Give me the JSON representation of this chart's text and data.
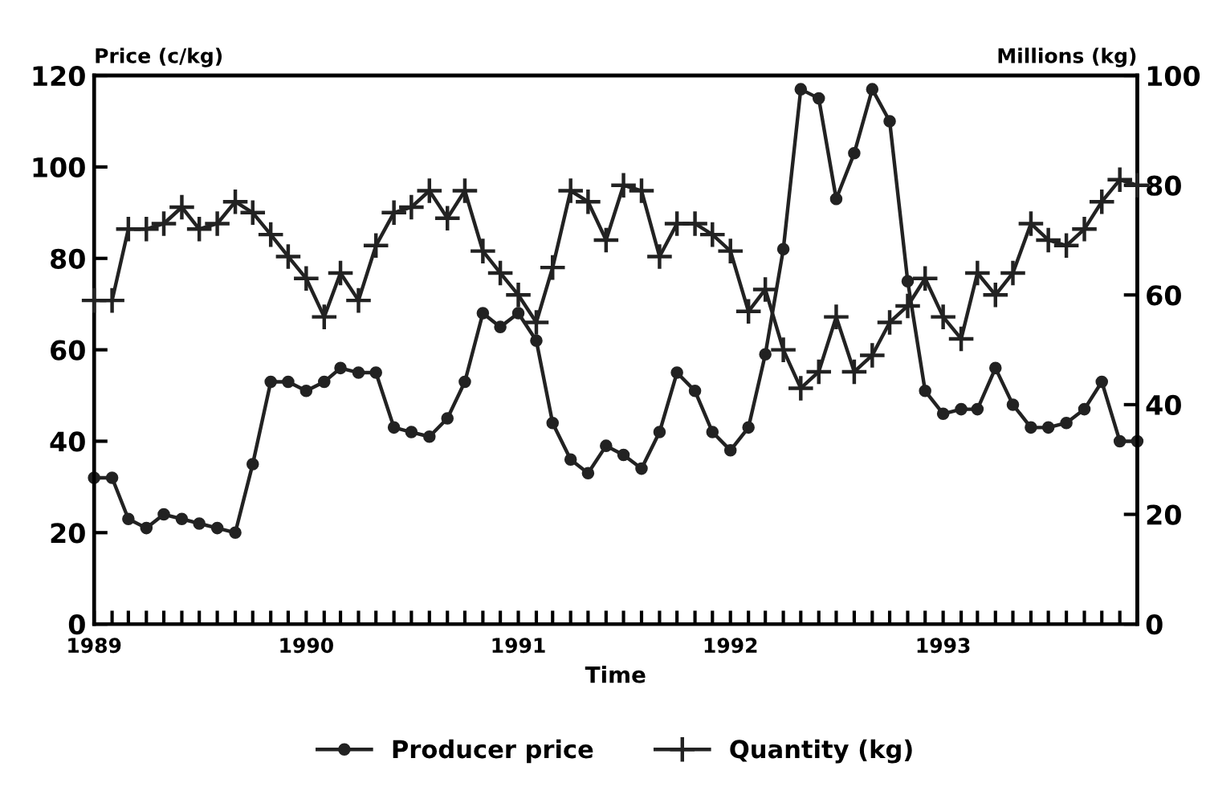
{
  "chart_data": {
    "type": "line",
    "xlabel": "Time",
    "ylabel": "Price (c/kg)",
    "y2label": "Millions (kg)",
    "x": [
      "1989-01",
      "1989-02",
      "1989-03",
      "1989-04",
      "1989-05",
      "1989-06",
      "1989-07",
      "1989-08",
      "1989-09",
      "1989-10",
      "1989-11",
      "1989-12",
      "1990-01",
      "1990-02",
      "1990-03",
      "1990-04",
      "1990-05",
      "1990-06",
      "1990-07",
      "1990-08",
      "1990-09",
      "1990-10",
      "1990-11",
      "1990-12",
      "1991-01",
      "1991-02",
      "1991-03",
      "1991-04",
      "1991-05",
      "1991-06",
      "1991-07",
      "1991-08",
      "1991-09",
      "1991-10",
      "1991-11",
      "1991-12",
      "1992-01",
      "1992-02",
      "1992-03",
      "1992-04",
      "1992-05",
      "1992-06",
      "1992-07",
      "1992-08",
      "1992-09",
      "1992-10",
      "1992-11",
      "1992-12",
      "1993-01",
      "1993-02",
      "1993-03",
      "1993-04",
      "1993-05",
      "1993-06",
      "1993-07",
      "1993-08",
      "1993-09",
      "1993-10",
      "1993-11",
      "1993-12"
    ],
    "series": [
      {
        "name": "Producer price",
        "color": "#222222",
        "marker": "circle",
        "values": [
          32,
          32,
          23,
          21,
          24,
          23,
          22,
          21,
          20,
          35,
          53,
          53,
          51,
          53,
          56,
          55,
          55,
          43,
          42,
          41,
          45,
          53,
          68,
          65,
          68,
          62,
          44,
          36,
          33,
          39,
          37,
          34,
          42,
          55,
          51,
          42,
          38,
          43,
          59,
          82,
          117,
          115,
          93,
          103,
          117,
          110,
          75,
          51,
          46,
          47,
          47,
          56,
          48,
          43,
          43,
          44,
          47,
          53,
          40,
          40
        ]
      },
      {
        "name": "Quantity (kg)",
        "color": "#222222",
        "marker": "cross",
        "axis": "y2",
        "values": [
          59,
          59,
          72,
          72,
          73,
          76,
          72,
          73,
          77,
          75,
          71,
          67,
          63,
          56,
          64,
          59,
          69,
          75,
          76,
          79,
          74,
          79,
          68,
          64,
          60,
          55,
          65,
          79,
          77,
          70,
          80,
          79,
          67,
          73,
          73,
          71,
          68,
          57,
          61,
          50,
          43,
          46,
          56,
          46,
          49,
          55,
          58,
          63,
          56,
          52,
          64,
          60,
          64,
          73,
          70,
          69,
          72,
          77,
          81,
          80
        ]
      }
    ],
    "xlim": [
      "1989-01",
      "1993-12"
    ],
    "xticks": [
      {
        "value": "1989-01",
        "label": "1989"
      },
      {
        "value": "1989-02",
        "label": null
      },
      {
        "value": "1989-03",
        "label": null
      },
      {
        "value": "1989-04",
        "label": null
      },
      {
        "value": "1989-05",
        "label": null
      },
      {
        "value": "1989-06",
        "label": null
      },
      {
        "value": "1989-07",
        "label": null
      },
      {
        "value": "1989-08",
        "label": null
      },
      {
        "value": "1989-09",
        "label": null
      },
      {
        "value": "1989-10",
        "label": null
      },
      {
        "value": "1989-11",
        "label": null
      },
      {
        "value": "1989-12",
        "label": null
      },
      {
        "value": "1990-01",
        "label": "1990"
      },
      {
        "value": "1990-02",
        "label": null
      },
      {
        "value": "1990-03",
        "label": null
      },
      {
        "value": "1990-04",
        "label": null
      },
      {
        "value": "1990-05",
        "label": null
      },
      {
        "value": "1990-06",
        "label": null
      },
      {
        "value": "1990-07",
        "label": null
      },
      {
        "value": "1990-08",
        "label": null
      },
      {
        "value": "1990-09",
        "label": null
      },
      {
        "value": "1990-10",
        "label": null
      },
      {
        "value": "1990-11",
        "label": null
      },
      {
        "value": "1990-12",
        "label": null
      },
      {
        "value": "1991-01",
        "label": "1991"
      },
      {
        "value": "1991-02",
        "label": null
      },
      {
        "value": "1991-03",
        "label": null
      },
      {
        "value": "1991-04",
        "label": null
      },
      {
        "value": "1991-05",
        "label": null
      },
      {
        "value": "1991-06",
        "label": null
      },
      {
        "value": "1991-07",
        "label": null
      },
      {
        "value": "1991-08",
        "label": null
      },
      {
        "value": "1991-09",
        "label": null
      },
      {
        "value": "1991-10",
        "label": null
      },
      {
        "value": "1991-11",
        "label": null
      },
      {
        "value": "1991-12",
        "label": null
      },
      {
        "value": "1992-01",
        "label": "1992"
      },
      {
        "value": "1992-02",
        "label": null
      },
      {
        "value": "1992-03",
        "label": null
      },
      {
        "value": "1992-04",
        "label": null
      },
      {
        "value": "1992-05",
        "label": null
      },
      {
        "value": "1992-06",
        "label": null
      },
      {
        "value": "1992-07",
        "label": null
      },
      {
        "value": "1992-08",
        "label": null
      },
      {
        "value": "1992-09",
        "label": null
      },
      {
        "value": "1992-10",
        "label": null
      },
      {
        "value": "1992-11",
        "label": null
      },
      {
        "value": "1992-12",
        "label": null
      },
      {
        "value": "1993-01",
        "label": "1993"
      },
      {
        "value": "1993-02",
        "label": null
      },
      {
        "value": "1993-03",
        "label": null
      },
      {
        "value": "1993-04",
        "label": null
      },
      {
        "value": "1993-05",
        "label": null
      },
      {
        "value": "1993-06",
        "label": null
      },
      {
        "value": "1993-07",
        "label": null
      },
      {
        "value": "1993-08",
        "label": null
      },
      {
        "value": "1993-09",
        "label": null
      },
      {
        "value": "1993-10",
        "label": null
      },
      {
        "value": "1993-11",
        "label": null
      },
      {
        "value": "1993-12",
        "label": null
      }
    ],
    "ylim": [
      0,
      120
    ],
    "yticks": [
      0,
      20,
      40,
      60,
      80,
      100,
      120
    ],
    "y2lim": [
      0,
      100
    ],
    "y2ticks": [
      0,
      20,
      40,
      60,
      80,
      100
    ],
    "grid": false,
    "legend": "bottom",
    "line_style": "solid"
  }
}
